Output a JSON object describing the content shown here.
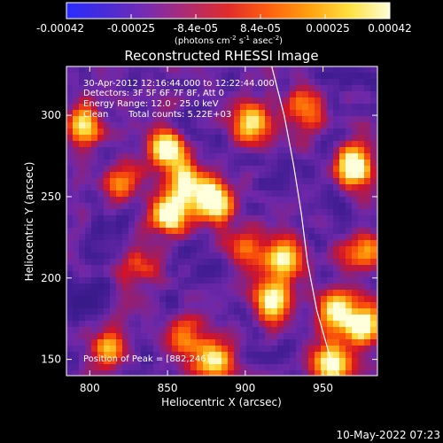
{
  "colorbar": {
    "ticks": [
      "-0.00042",
      "-0.00025",
      "-8.4e-05",
      "8.4e-05",
      "0.00025",
      "0.00042"
    ],
    "units_prefix": "(photons cm",
    "units_exp1": "-2",
    "units_mid": " s",
    "units_exp2": "-1",
    "units_mid2": " asec",
    "units_exp3": "-2",
    "units_suffix": ")",
    "colors": [
      "#2b2bff",
      "#4a2bd6",
      "#7a2bb0",
      "#b02b70",
      "#e02b2b",
      "#ff6010",
      "#ffa010",
      "#ffe040",
      "#ffffd8"
    ]
  },
  "chart_data": {
    "type": "heatmap",
    "title": "Reconstructed RHESSI Image",
    "xlabel": "Heliocentric X (arcsec)",
    "ylabel": "Heliocentric Y (arcsec)",
    "xlim": [
      785,
      985
    ],
    "ylim": [
      140,
      330
    ],
    "xticks": [
      800,
      850,
      900,
      950
    ],
    "yticks": [
      150,
      200,
      250,
      300
    ],
    "limb_line": [
      [
        917,
        330
      ],
      [
        925,
        300
      ],
      [
        931,
        270
      ],
      [
        936,
        240
      ],
      [
        940,
        210
      ],
      [
        946,
        180
      ],
      [
        955,
        150
      ],
      [
        960,
        140
      ]
    ],
    "sources": [
      {
        "x": 880,
        "y": 248,
        "intensity": 1.0
      },
      {
        "x": 852,
        "y": 240,
        "intensity": 0.95
      },
      {
        "x": 862,
        "y": 258,
        "intensity": 0.7
      },
      {
        "x": 850,
        "y": 278,
        "intensity": 0.85
      },
      {
        "x": 970,
        "y": 268,
        "intensity": 0.9
      },
      {
        "x": 925,
        "y": 212,
        "intensity": 0.75
      },
      {
        "x": 918,
        "y": 185,
        "intensity": 0.8
      },
      {
        "x": 958,
        "y": 180,
        "intensity": 0.85
      },
      {
        "x": 975,
        "y": 170,
        "intensity": 0.85
      },
      {
        "x": 860,
        "y": 165,
        "intensity": 0.55
      },
      {
        "x": 880,
        "y": 148,
        "intensity": 0.75
      },
      {
        "x": 955,
        "y": 148,
        "intensity": 0.85
      },
      {
        "x": 812,
        "y": 155,
        "intensity": 0.55
      },
      {
        "x": 796,
        "y": 295,
        "intensity": 0.65
      },
      {
        "x": 820,
        "y": 258,
        "intensity": 0.5
      },
      {
        "x": 905,
        "y": 295,
        "intensity": 0.65
      },
      {
        "x": 940,
        "y": 305,
        "intensity": 0.55
      },
      {
        "x": 975,
        "y": 215,
        "intensity": 0.55
      },
      {
        "x": 900,
        "y": 220,
        "intensity": 0.45
      },
      {
        "x": 830,
        "y": 205,
        "intensity": 0.35
      }
    ]
  },
  "annotations": {
    "line1": "30-Apr-2012 12:16:44.000 to 12:22:44.000",
    "line2": "Detectors: 3F 5F 6F 7F 8F, Att 0",
    "line3": "Energy Range: 12.0 - 25.0 keV",
    "line4_a": "Clean",
    "line4_b": "Total counts: 5.22E+03",
    "peak": "Position of Peak = [882,246]"
  },
  "footer": {
    "timestamp": "10-May-2022 07:23"
  }
}
